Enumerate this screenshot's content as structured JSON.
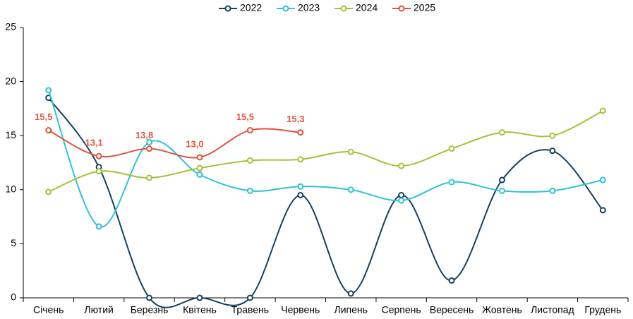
{
  "chart_data": {
    "type": "line",
    "categories": [
      "Січень",
      "Лютий",
      "Березнь",
      "Квітень",
      "Травень",
      "Червень",
      "Липень",
      "Серпень",
      "Вересень",
      "Жовтень",
      "Листопад",
      "Грудень"
    ],
    "series": [
      {
        "name": "2022",
        "color": "#17405e",
        "values": [
          18.5,
          12.1,
          0,
          0,
          0,
          9.5,
          0.4,
          9.5,
          1.6,
          10.9,
          13.6,
          8.1
        ]
      },
      {
        "name": "2023",
        "color": "#2fc3d3",
        "values": [
          19.2,
          6.6,
          14.4,
          11.4,
          9.9,
          10.3,
          10.0,
          9.0,
          10.7,
          9.9,
          9.9,
          10.9
        ]
      },
      {
        "name": "2024",
        "color": "#a6bf3c",
        "values": [
          9.8,
          11.7,
          11.1,
          12.0,
          12.7,
          12.8,
          13.5,
          12.2,
          13.8,
          15.3,
          15.0,
          17.3
        ]
      },
      {
        "name": "2025",
        "color": "#e0533e",
        "values": [
          15.5,
          13.1,
          13.8,
          13.0,
          15.5,
          15.3,
          null,
          null,
          null,
          null,
          null,
          null
        ],
        "value_labels": [
          "15,5",
          "13,1",
          "13,8",
          "13,0",
          "15,5",
          "15,3",
          null,
          null,
          null,
          null,
          null,
          null
        ]
      }
    ],
    "ylim": [
      0,
      25
    ],
    "yticks": [
      0,
      5,
      10,
      15,
      20,
      25
    ],
    "grid": false,
    "legend": "top",
    "smooth": true
  }
}
